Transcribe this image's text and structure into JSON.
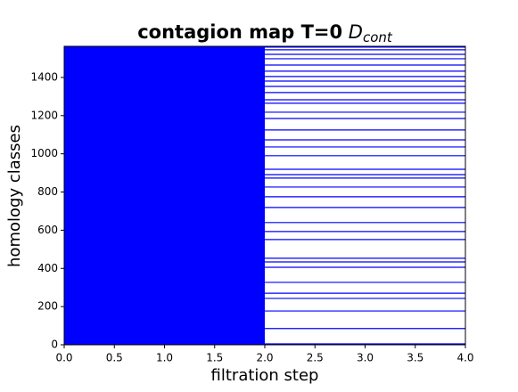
{
  "chart_data": {
    "type": "barcode",
    "title": "contagion map T=0",
    "title_symbol": "D",
    "title_subscript": "cont",
    "x_label": "filtration step",
    "y_label": "homology classes",
    "xlim": [
      0,
      4
    ],
    "ylim": [
      0,
      1563
    ],
    "xticks": [
      {
        "value": 0,
        "label": "0.0"
      },
      {
        "value": 0.5,
        "label": "0.5"
      },
      {
        "value": 1,
        "label": "1.0"
      },
      {
        "value": 1.5,
        "label": "1.5"
      },
      {
        "value": 2,
        "label": "2.0"
      },
      {
        "value": 2.5,
        "label": "2.5"
      },
      {
        "value": 3,
        "label": "3.0"
      },
      {
        "value": 3.5,
        "label": "3.5"
      },
      {
        "value": 4,
        "label": "4.0"
      }
    ],
    "yticks": [
      0,
      200,
      400,
      600,
      800,
      1000,
      1200,
      1400
    ],
    "color": "#0000ff",
    "finite_bars": {
      "birth": 0,
      "death": 2
    },
    "long_bars": {
      "birth": 0,
      "death": 4,
      "classes": [
        5,
        85,
        177,
        243,
        270,
        327,
        406,
        434,
        453,
        551,
        593,
        640,
        719,
        775,
        826,
        873,
        891,
        919,
        990,
        1036,
        1073,
        1125,
        1185,
        1218,
        1265,
        1283,
        1321,
        1353,
        1381,
        1405,
        1433,
        1465,
        1498,
        1521,
        1545,
        1559
      ]
    }
  }
}
